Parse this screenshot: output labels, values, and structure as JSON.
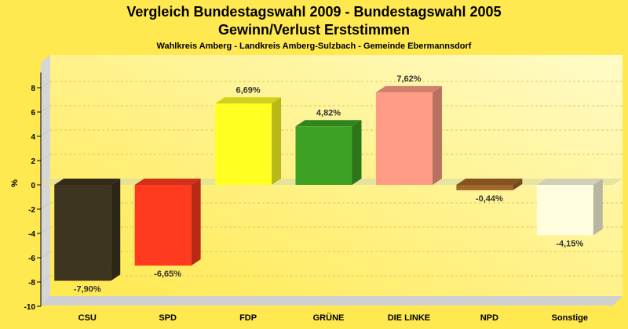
{
  "chart_data": {
    "type": "bar",
    "title": "Vergleich Bundestagswahl 2009 - Bundestagswahl 2005",
    "title_line2": "Gewinn/Verlust Erststimmen",
    "subtitle": "Wahlkreis Amberg - Landkreis Amberg-Sulzbach - Gemeinde Ebermannsdorf",
    "ylabel": "%",
    "ylim": [
      -10,
      9
    ],
    "yticks": [
      -10,
      -8,
      -6,
      -4,
      -2,
      0,
      2,
      4,
      6,
      8
    ],
    "grid": true,
    "categories": [
      "CSU",
      "SPD",
      "FDP",
      "GRÜNE",
      "DIE LINKE",
      "NPD",
      "Sonstige"
    ],
    "values": [
      -7.9,
      -6.65,
      6.69,
      4.82,
      7.62,
      -0.44,
      -4.15
    ],
    "value_labels": [
      "-7,90%",
      "-6,65%",
      "6,69%",
      "4,82%",
      "7,62%",
      "-0,44%",
      "-4,15%"
    ],
    "colors": [
      "#3d3520",
      "#ff3a1e",
      "#ffff22",
      "#3da224",
      "#ff9c86",
      "#a0662a",
      "#fffde0"
    ]
  }
}
